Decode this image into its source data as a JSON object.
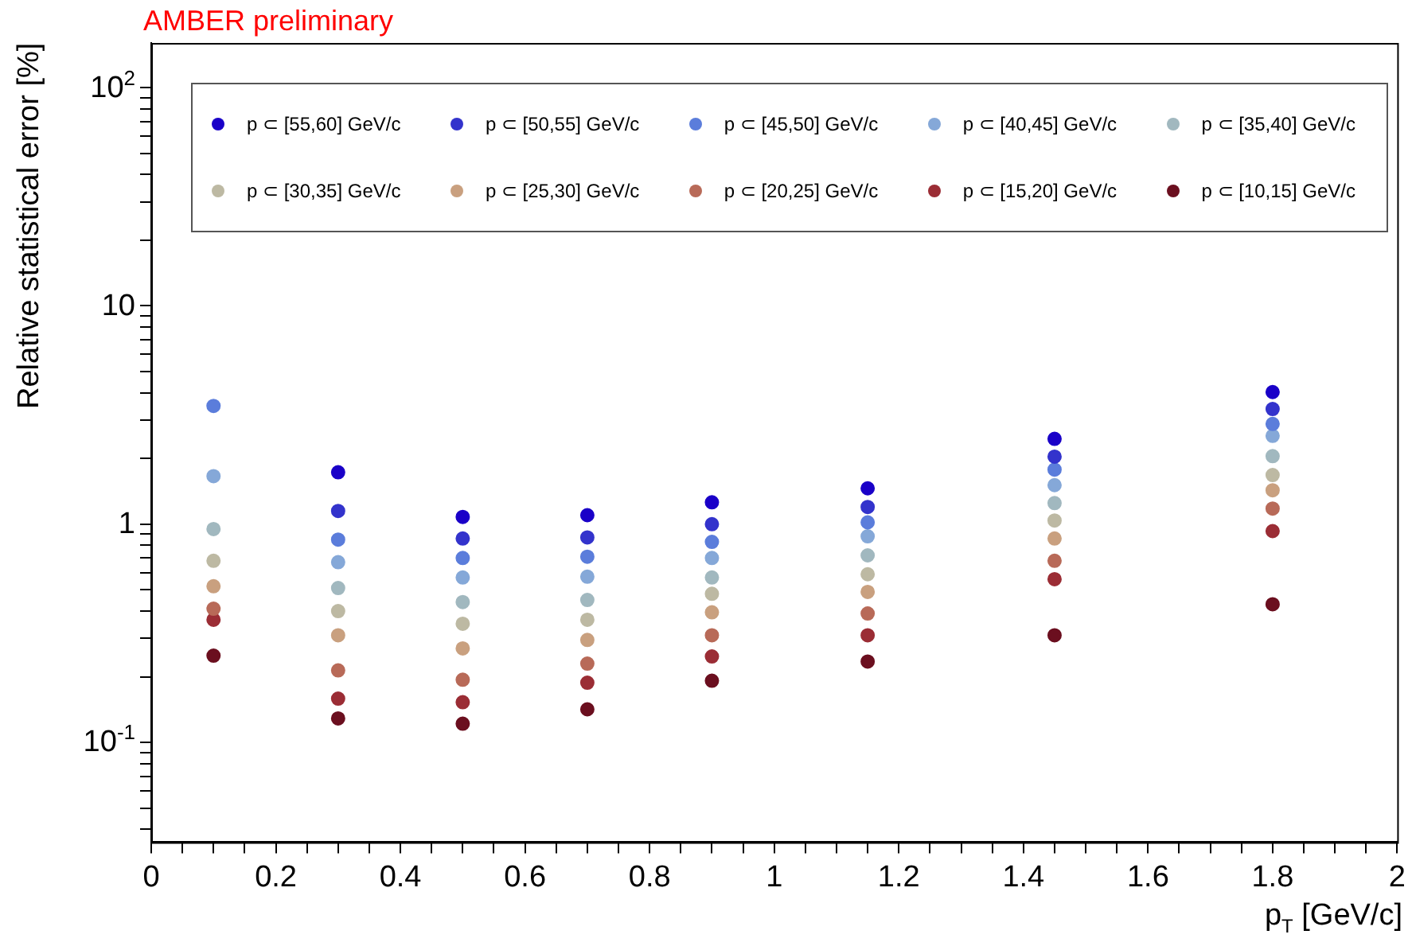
{
  "chart_data": {
    "type": "scatter",
    "title": "AMBER preliminary",
    "xlabel": "p$_{T}$ [GeV/c]",
    "ylabel": "Relative statistical error [%]",
    "x": [
      0.1,
      0.3,
      0.5,
      0.7,
      0.9,
      1.15,
      1.45,
      1.8
    ],
    "series": [
      {
        "name": "p ⊂ [55,60] GeV/c",
        "color": "#1a00c8",
        "values": [
          null,
          1.73,
          1.08,
          1.1,
          1.26,
          1.46,
          2.46,
          4.03
        ]
      },
      {
        "name": "p ⊂ [50,55] GeV/c",
        "color": "#3333cc",
        "values": [
          null,
          1.15,
          0.86,
          0.87,
          1.0,
          1.2,
          2.04,
          3.37
        ]
      },
      {
        "name": "p ⊂ [45,50] GeV/c",
        "color": "#5b7ddb",
        "values": [
          3.48,
          0.85,
          0.7,
          0.71,
          0.83,
          1.02,
          1.78,
          2.88
        ]
      },
      {
        "name": "p ⊂ [40,45] GeV/c",
        "color": "#85a8d8",
        "values": [
          1.66,
          0.67,
          0.57,
          0.575,
          0.7,
          0.88,
          1.51,
          2.54
        ]
      },
      {
        "name": "p ⊂ [35,40] GeV/c",
        "color": "#a1b8bf",
        "values": [
          0.95,
          0.51,
          0.44,
          0.45,
          0.57,
          0.72,
          1.25,
          2.05
        ]
      },
      {
        "name": "p ⊂ [30,35] GeV/c",
        "color": "#bdb9a3",
        "values": [
          0.68,
          0.4,
          0.35,
          0.365,
          0.48,
          0.59,
          1.04,
          1.68
        ]
      },
      {
        "name": "p ⊂ [25,30] GeV/c",
        "color": "#c9a07f",
        "values": [
          0.52,
          0.31,
          0.27,
          0.295,
          0.395,
          0.49,
          0.86,
          1.43
        ]
      },
      {
        "name": "p ⊂ [20,25] GeV/c",
        "color": "#b86a58",
        "values": [
          0.41,
          0.214,
          0.194,
          0.23,
          0.31,
          0.39,
          0.68,
          1.18
        ]
      },
      {
        "name": "p ⊂ [15,20] GeV/c",
        "color": "#9b2d35",
        "values": [
          0.365,
          0.159,
          0.153,
          0.188,
          0.248,
          0.31,
          0.56,
          0.93
        ]
      },
      {
        "name": "p ⊂ [10,15] GeV/c",
        "color": "#6b0f1f",
        "values": [
          0.25,
          0.129,
          0.122,
          0.142,
          0.192,
          0.235,
          0.31,
          0.43
        ]
      }
    ],
    "xlim": [
      0,
      2
    ],
    "xticks": [
      0,
      {
        "value": 0.05,
        "label": null
      },
      {
        "value": 0.1,
        "label": null
      },
      {
        "value": 0.15,
        "label": null
      },
      0.2,
      {
        "value": 0.25,
        "label": null
      },
      {
        "value": 0.3,
        "label": null
      },
      {
        "value": 0.35,
        "label": null
      },
      0.4,
      {
        "value": 0.45,
        "label": null
      },
      {
        "value": 0.5,
        "label": null
      },
      {
        "value": 0.55,
        "label": null
      },
      0.6,
      {
        "value": 0.65,
        "label": null
      },
      {
        "value": 0.7,
        "label": null
      },
      {
        "value": 0.75,
        "label": null
      },
      0.8,
      {
        "value": 0.85,
        "label": null
      },
      {
        "value": 0.9,
        "label": null
      },
      {
        "value": 0.95,
        "label": null
      },
      1,
      {
        "value": 1.05,
        "label": null
      },
      {
        "value": 1.1,
        "label": null
      },
      {
        "value": 1.15,
        "label": null
      },
      1.2,
      {
        "value": 1.25,
        "label": null
      },
      {
        "value": 1.3,
        "label": null
      },
      {
        "value": 1.35,
        "label": null
      },
      1.4,
      {
        "value": 1.45,
        "label": null
      },
      {
        "value": 1.5,
        "label": null
      },
      {
        "value": 1.55,
        "label": null
      },
      1.6,
      {
        "value": 1.65,
        "label": null
      },
      {
        "value": 1.7,
        "label": null
      },
      {
        "value": 1.75,
        "label": null
      },
      1.8,
      {
        "value": 1.85,
        "label": null
      },
      {
        "value": 1.9,
        "label": null
      },
      {
        "value": 1.95,
        "label": null
      },
      2
    ],
    "ylim": [
      0.035,
      160
    ],
    "yticks": [
      {
        "value": 0.04,
        "label": null
      },
      {
        "value": 0.05,
        "label": null
      },
      {
        "value": 0.06,
        "label": null
      },
      {
        "value": 0.07,
        "label": null
      },
      {
        "value": 0.08,
        "label": null
      },
      {
        "value": 0.09,
        "label": null
      },
      {
        "value": 0.1,
        "label": "10$^{-1}$"
      },
      {
        "value": 0.2,
        "label": null
      },
      {
        "value": 0.3,
        "label": null
      },
      {
        "value": 0.4,
        "label": null
      },
      {
        "value": 0.5,
        "label": null
      },
      {
        "value": 0.6,
        "label": null
      },
      {
        "value": 0.7,
        "label": null
      },
      {
        "value": 0.8,
        "label": null
      },
      {
        "value": 0.9,
        "label": null
      },
      1,
      {
        "value": 2,
        "label": null
      },
      {
        "value": 3,
        "label": null
      },
      {
        "value": 4,
        "label": null
      },
      {
        "value": 5,
        "label": null
      },
      {
        "value": 6,
        "label": null
      },
      {
        "value": 7,
        "label": null
      },
      {
        "value": 8,
        "label": null
      },
      {
        "value": 9,
        "label": null
      },
      10,
      {
        "value": 20,
        "label": null
      },
      {
        "value": 30,
        "label": null
      },
      {
        "value": 40,
        "label": null
      },
      {
        "value": 50,
        "label": null
      },
      {
        "value": 60,
        "label": null
      },
      {
        "value": 70,
        "label": null
      },
      {
        "value": 80,
        "label": null
      },
      {
        "value": 90,
        "label": null
      },
      {
        "value": 100,
        "label": "10$^{2}$"
      }
    ],
    "log": true,
    "marker": "circle",
    "legend": "top"
  }
}
